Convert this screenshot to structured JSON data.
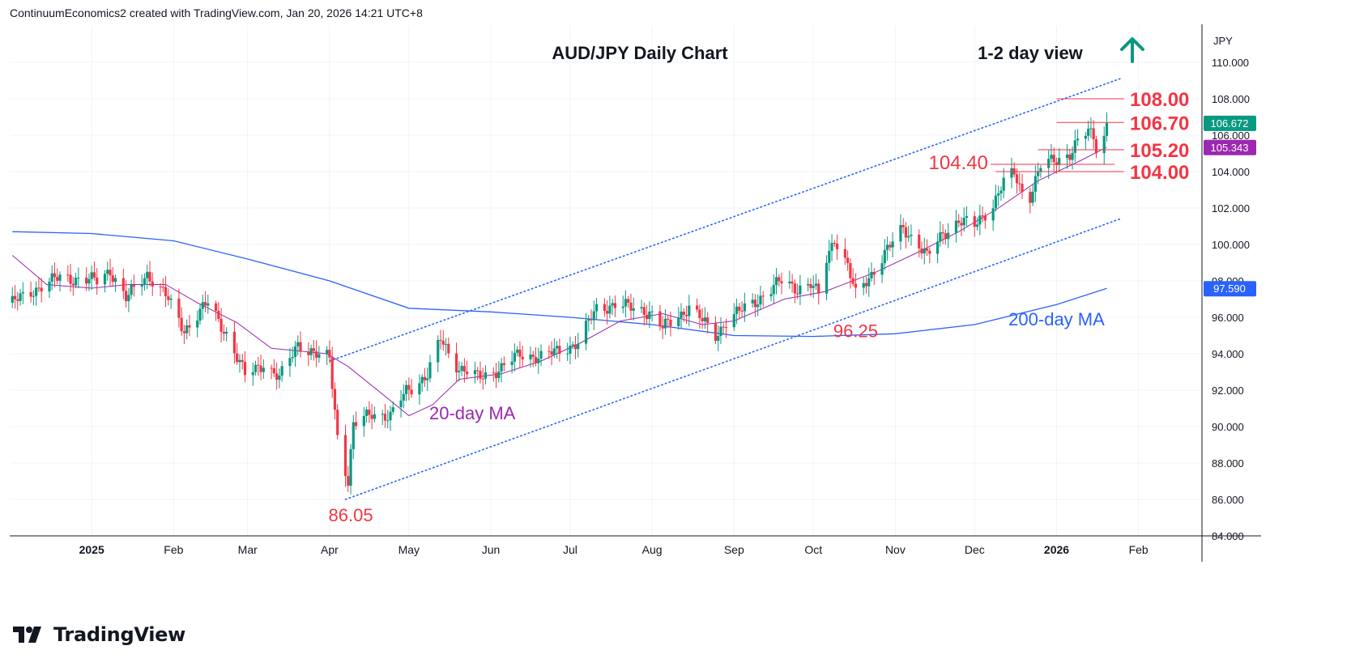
{
  "header": {
    "credit": "ContinuumEconomics2 created with TradingView.com, Jan 20, 2026 14:21 UTC+8"
  },
  "footer": {
    "brand": "TradingView"
  },
  "colors": {
    "up": "#089981",
    "down": "#f23645",
    "level": "#f23645",
    "ma20": "#9c27b0",
    "ma200": "#2962ff",
    "channel": "#2962ff",
    "arrow": "#089981",
    "grid": "#f0f3fa"
  },
  "chart_data": {
    "type": "candlestick",
    "title": "AUD/JPY Daily Chart",
    "view_label": "1-2 day view",
    "view_direction": "up-arrow-icon",
    "currency": "JPY",
    "y_range": [
      84,
      112
    ],
    "y_ticks": [
      "110.000",
      "108.000",
      "106.000",
      "104.000",
      "102.000",
      "100.000",
      "98.000",
      "96.000",
      "94.000",
      "92.000",
      "90.000",
      "88.000",
      "86.000",
      "84.000"
    ],
    "x_range": [
      "2024-12-01",
      "2026-02-25"
    ],
    "x_ticks": [
      {
        "label": "2025",
        "date": "2025-01-01",
        "bold": true
      },
      {
        "label": "Feb",
        "date": "2025-02-01",
        "bold": false
      },
      {
        "label": "Mar",
        "date": "2025-03-01",
        "bold": false
      },
      {
        "label": "Apr",
        "date": "2025-04-01",
        "bold": false
      },
      {
        "label": "May",
        "date": "2025-05-01",
        "bold": false
      },
      {
        "label": "Jun",
        "date": "2025-06-01",
        "bold": false
      },
      {
        "label": "Jul",
        "date": "2025-07-01",
        "bold": false
      },
      {
        "label": "Aug",
        "date": "2025-08-01",
        "bold": false
      },
      {
        "label": "Sep",
        "date": "2025-09-01",
        "bold": false
      },
      {
        "label": "Oct",
        "date": "2025-10-01",
        "bold": false
      },
      {
        "label": "Nov",
        "date": "2025-11-01",
        "bold": false
      },
      {
        "label": "Dec",
        "date": "2025-12-01",
        "bold": false
      },
      {
        "label": "2026",
        "date": "2026-01-01",
        "bold": true
      },
      {
        "label": "Feb",
        "date": "2026-02-01",
        "bold": false
      }
    ],
    "close_path": [
      [
        "2024-12-02",
        96.8
      ],
      [
        "2024-12-10",
        97.5
      ],
      [
        "2024-12-20",
        98.2
      ],
      [
        "2025-01-03",
        98.0
      ],
      [
        "2025-01-08",
        98.6
      ],
      [
        "2025-01-14",
        97.0
      ],
      [
        "2025-01-22",
        98.4
      ],
      [
        "2025-01-29",
        97.2
      ],
      [
        "2025-02-05",
        95.3
      ],
      [
        "2025-02-14",
        96.8
      ],
      [
        "2025-02-21",
        95.1
      ],
      [
        "2025-02-28",
        92.8
      ],
      [
        "2025-03-07",
        93.5
      ],
      [
        "2025-03-13",
        92.6
      ],
      [
        "2025-03-20",
        94.6
      ],
      [
        "2025-03-28",
        93.8
      ],
      [
        "2025-04-01",
        93.8
      ],
      [
        "2025-04-04",
        89.5
      ],
      [
        "2025-04-08",
        87.0
      ],
      [
        "2025-04-10",
        90.0
      ],
      [
        "2025-04-17",
        90.8
      ],
      [
        "2025-04-24",
        90.5
      ],
      [
        "2025-04-30",
        92.0
      ],
      [
        "2025-05-08",
        92.8
      ],
      [
        "2025-05-13",
        94.8
      ],
      [
        "2025-05-20",
        93.2
      ],
      [
        "2025-05-27",
        92.7
      ],
      [
        "2025-06-05",
        93.2
      ],
      [
        "2025-06-12",
        94.0
      ],
      [
        "2025-06-20",
        93.8
      ],
      [
        "2025-06-27",
        94.2
      ],
      [
        "2025-07-04",
        94.6
      ],
      [
        "2025-07-11",
        96.5
      ],
      [
        "2025-07-18",
        96.7
      ],
      [
        "2025-07-25",
        96.5
      ],
      [
        "2025-07-31",
        96.3
      ],
      [
        "2025-08-05",
        95.4
      ],
      [
        "2025-08-12",
        96.2
      ],
      [
        "2025-08-15",
        96.6
      ],
      [
        "2025-08-20",
        95.8
      ],
      [
        "2025-08-25",
        95.0
      ],
      [
        "2025-08-29",
        95.8
      ],
      [
        "2025-09-05",
        96.5
      ],
      [
        "2025-09-12",
        97.2
      ],
      [
        "2025-09-19",
        98.0
      ],
      [
        "2025-09-25",
        97.6
      ],
      [
        "2025-09-30",
        97.8
      ],
      [
        "2025-10-03",
        97.2
      ],
      [
        "2025-10-06",
        99.2
      ],
      [
        "2025-10-09",
        100.4
      ],
      [
        "2025-10-14",
        98.8
      ],
      [
        "2025-10-17",
        97.2
      ],
      [
        "2025-10-22",
        98.2
      ],
      [
        "2025-10-28",
        99.5
      ],
      [
        "2025-11-04",
        100.9
      ],
      [
        "2025-11-10",
        100.0
      ],
      [
        "2025-11-13",
        99.3
      ],
      [
        "2025-11-19",
        100.6
      ],
      [
        "2025-11-25",
        101.3
      ],
      [
        "2025-12-01",
        101.0
      ],
      [
        "2025-12-04",
        101.6
      ],
      [
        "2025-12-08",
        102.2
      ],
      [
        "2025-12-12",
        103.4
      ],
      [
        "2025-12-16",
        103.9
      ],
      [
        "2025-12-19",
        102.9
      ],
      [
        "2025-12-22",
        102.7
      ],
      [
        "2025-12-26",
        104.3
      ],
      [
        "2025-12-31",
        104.6
      ],
      [
        "2026-01-06",
        105.0
      ],
      [
        "2026-01-09",
        105.6
      ],
      [
        "2026-01-13",
        106.2
      ],
      [
        "2026-01-15",
        105.9
      ],
      [
        "2026-01-16",
        105.4
      ],
      [
        "2026-01-19",
        106.0
      ],
      [
        "2026-01-20",
        106.67
      ]
    ],
    "ma20_path": [
      [
        "2024-12-02",
        99.4
      ],
      [
        "2024-12-15",
        97.8
      ],
      [
        "2025-01-01",
        97.6
      ],
      [
        "2025-01-15",
        97.8
      ],
      [
        "2025-01-29",
        97.8
      ],
      [
        "2025-02-10",
        96.8
      ],
      [
        "2025-02-25",
        95.7
      ],
      [
        "2025-03-10",
        94.3
      ],
      [
        "2025-03-31",
        94.0
      ],
      [
        "2025-04-08",
        93.3
      ],
      [
        "2025-04-20",
        91.9
      ],
      [
        "2025-05-01",
        90.6
      ],
      [
        "2025-05-10",
        91.2
      ],
      [
        "2025-05-20",
        92.6
      ],
      [
        "2025-06-05",
        92.9
      ],
      [
        "2025-06-20",
        93.6
      ],
      [
        "2025-07-05",
        94.6
      ],
      [
        "2025-07-20",
        95.8
      ],
      [
        "2025-08-05",
        96.2
      ],
      [
        "2025-08-20",
        95.6
      ],
      [
        "2025-09-01",
        95.8
      ],
      [
        "2025-09-20",
        97.0
      ],
      [
        "2025-10-05",
        97.4
      ],
      [
        "2025-10-25",
        98.5
      ],
      [
        "2025-11-10",
        99.6
      ],
      [
        "2025-11-25",
        100.7
      ],
      [
        "2025-12-10",
        102.0
      ],
      [
        "2025-12-25",
        103.5
      ],
      [
        "2026-01-10",
        104.6
      ],
      [
        "2026-01-20",
        105.343
      ]
    ],
    "ma200_path": [
      [
        "2024-12-02",
        100.7
      ],
      [
        "2025-01-01",
        100.6
      ],
      [
        "2025-02-01",
        100.2
      ],
      [
        "2025-03-01",
        99.2
      ],
      [
        "2025-04-01",
        98.0
      ],
      [
        "2025-05-01",
        96.5
      ],
      [
        "2025-06-01",
        96.3
      ],
      [
        "2025-07-01",
        96.0
      ],
      [
        "2025-08-01",
        95.6
      ],
      [
        "2025-09-01",
        95.0
      ],
      [
        "2025-10-01",
        94.95
      ],
      [
        "2025-11-01",
        95.1
      ],
      [
        "2025-12-01",
        95.6
      ],
      [
        "2026-01-01",
        96.7
      ],
      [
        "2026-01-20",
        97.59
      ]
    ],
    "channel_upper": [
      [
        "2025-04-01",
        93.6
      ],
      [
        "2026-01-25",
        109.1
      ]
    ],
    "channel_lower": [
      [
        "2025-04-07",
        86.0
      ],
      [
        "2026-01-25",
        101.4
      ]
    ],
    "levels": [
      {
        "label": "108.00",
        "value": 108.0,
        "from": "2026-01-01",
        "side": "right"
      },
      {
        "label": "106.70",
        "value": 106.7,
        "from": "2026-01-01",
        "side": "right"
      },
      {
        "label": "105.20",
        "value": 105.2,
        "from": "2025-12-25",
        "side": "right"
      },
      {
        "label": "104.00",
        "value": 104.0,
        "from": "2025-12-09",
        "side": "right"
      },
      {
        "label": "104.40",
        "value": 104.4,
        "from": "2025-12-07",
        "side": "left"
      }
    ],
    "annotations": [
      {
        "text": "86.05",
        "date": "2025-04-09",
        "value": 86.05,
        "color": "#f23645"
      },
      {
        "text": "96.25",
        "date": "2025-10-17",
        "value": 96.25,
        "color": "#f23645"
      },
      {
        "text": "20-day MA",
        "date": "2025-05-25",
        "value": 90.4,
        "color": "#9c27b0"
      },
      {
        "text": "200-day MA",
        "date": "2026-01-01",
        "value": 95.55,
        "color": "#2962ff"
      }
    ],
    "price_tags": [
      {
        "text": "106.672",
        "value": 106.672,
        "bg": "#089981",
        "fg": "#ffffff"
      },
      {
        "text": "105.343",
        "value": 105.343,
        "bg": "#9c27b0",
        "fg": "#ffffff"
      },
      {
        "text": "97.590",
        "value": 97.59,
        "bg": "#2962ff",
        "fg": "#ffffff"
      }
    ]
  }
}
